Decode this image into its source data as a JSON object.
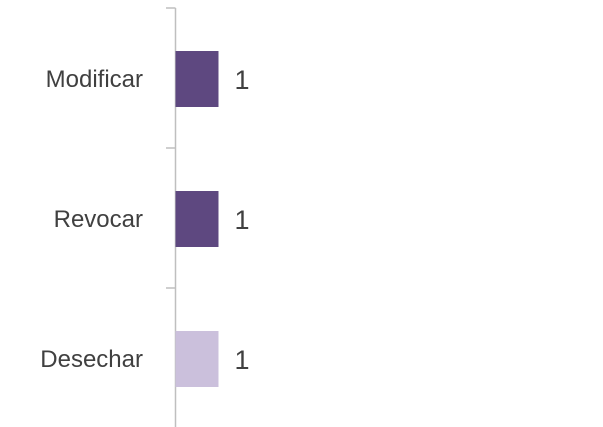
{
  "chart_data": {
    "type": "bar",
    "orientation": "horizontal",
    "categories": [
      "Modificar",
      "Revocar",
      "Desechar"
    ],
    "values": [
      1,
      1,
      1
    ],
    "data_labels": [
      "1",
      "1",
      "1"
    ],
    "bar_colors": [
      "#5e4880",
      "#5e4880",
      "#cbc0dc"
    ],
    "axis_color": "#bfbfbf",
    "title": "",
    "xlabel": "",
    "ylabel": "",
    "grid": false,
    "legend": "none"
  }
}
